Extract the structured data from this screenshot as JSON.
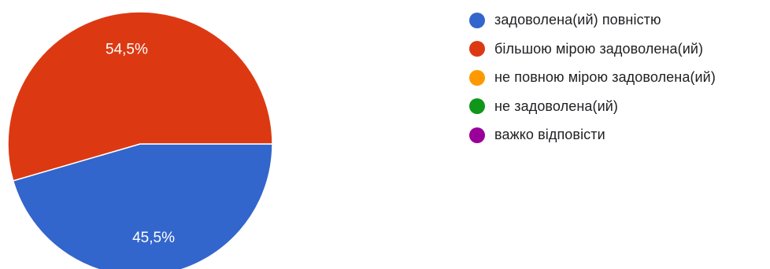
{
  "chart_data": {
    "type": "pie",
    "title": "",
    "categories": [
      "задоволена(ий) повністю",
      "більшою мірою задоволена(ий)",
      "не повною мірою задоволена(ий)",
      "не задоволена(ий)",
      "важко відповісти"
    ],
    "values": [
      45.5,
      54.5,
      0,
      0,
      0
    ],
    "value_labels": [
      "45,5%",
      "54,5%",
      "",
      "",
      ""
    ],
    "colors": [
      "#3366cc",
      "#dc3912",
      "#ff9900",
      "#109618",
      "#990099"
    ],
    "legend_position": "right"
  }
}
